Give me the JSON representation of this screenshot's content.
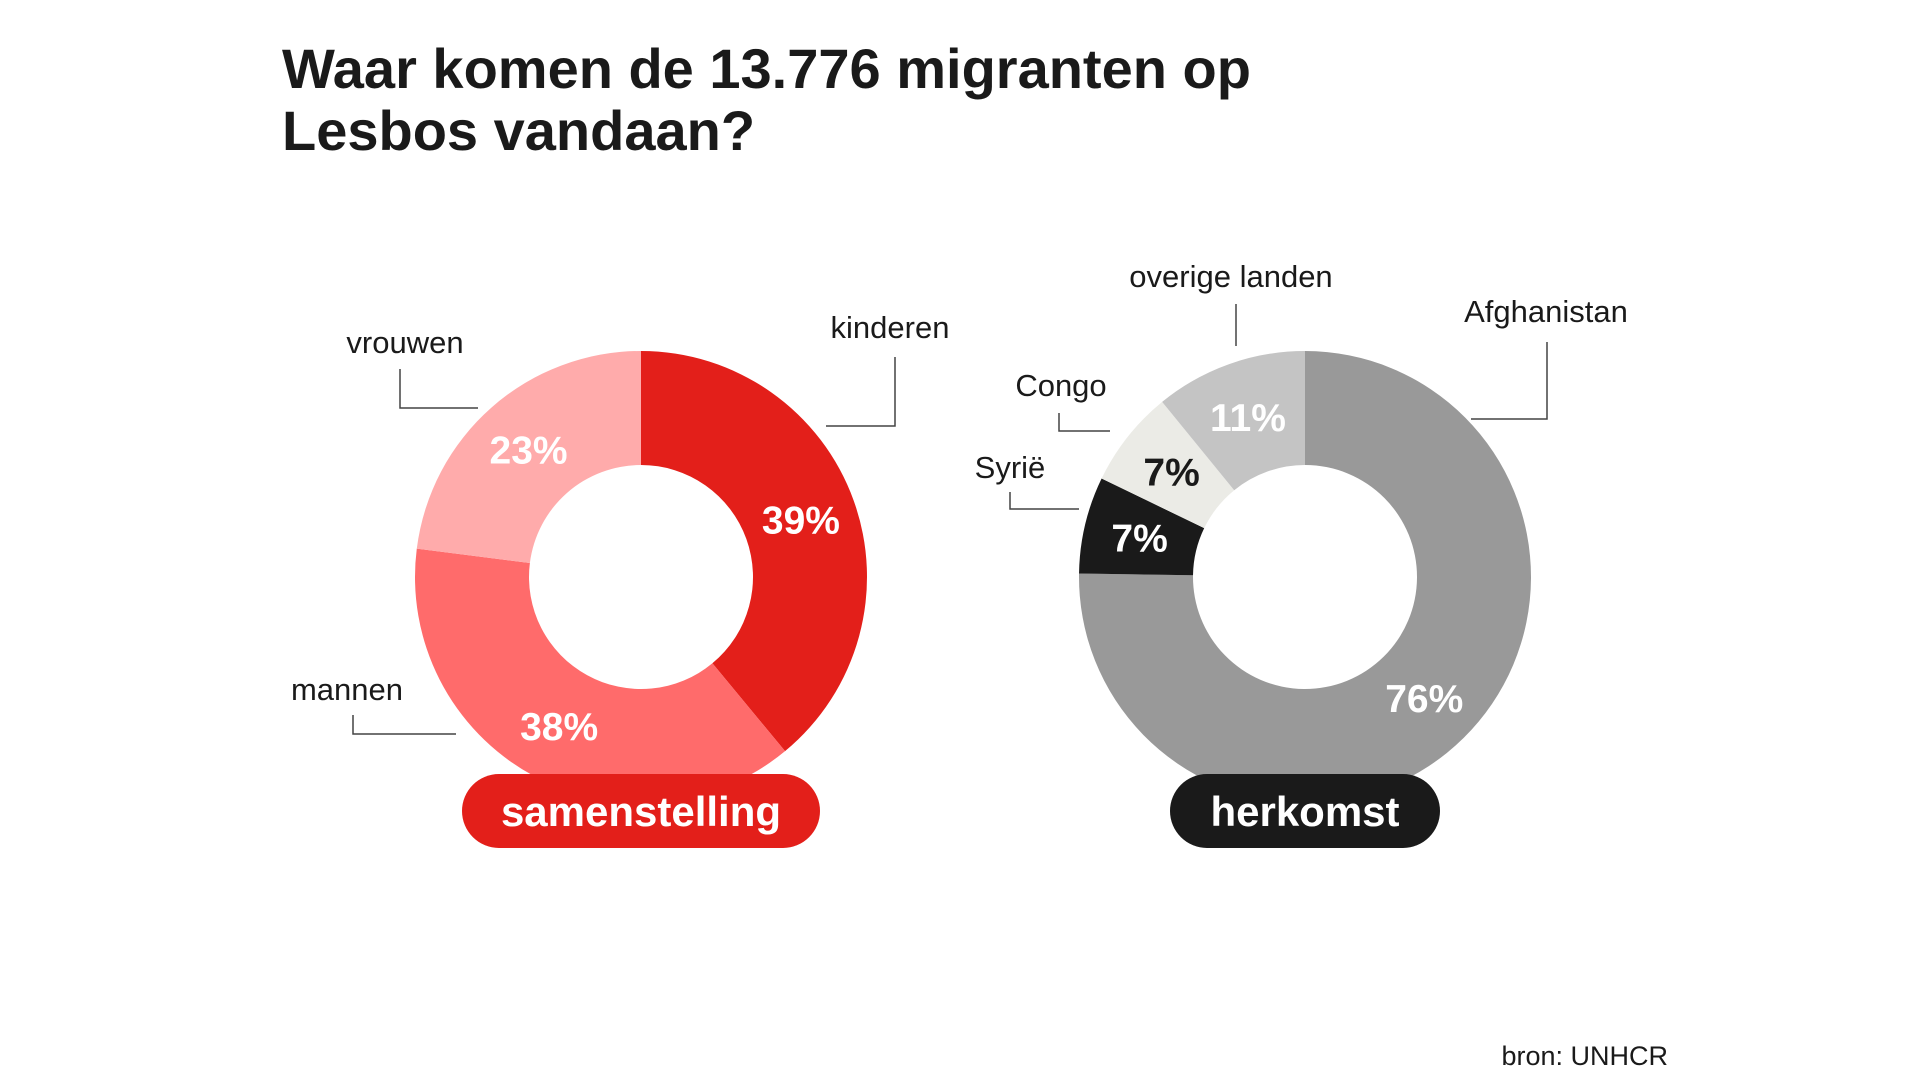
{
  "title": {
    "line1": "Waar komen de 13.776 migranten op",
    "line2": "Lesbos vandaan?"
  },
  "chart_data": [
    {
      "type": "pie",
      "variant": "donut",
      "name": "samenstelling",
      "pill_color": "#e31f1a",
      "slices": [
        {
          "label": "kinderen",
          "value": 39,
          "display": "39%",
          "color": "#e31f1a",
          "text_color": "#ffffff"
        },
        {
          "label": "mannen",
          "value": 38,
          "display": "38%",
          "color": "#ff6b6b",
          "text_color": "#ffffff"
        },
        {
          "label": "vrouwen",
          "value": 23,
          "display": "23%",
          "color": "#ffabab",
          "text_color": "#ffffff"
        }
      ]
    },
    {
      "type": "pie",
      "variant": "donut",
      "name": "herkomst",
      "pill_color": "#1a1a1a",
      "slices": [
        {
          "label": "Afghanistan",
          "value": 76,
          "display": "76%",
          "color": "#999999",
          "text_color": "#ffffff"
        },
        {
          "label": "Syrië",
          "value": 7,
          "display": "7%",
          "color": "#1a1a1a",
          "text_color": "#ffffff"
        },
        {
          "label": "Congo",
          "value": 7,
          "display": "7%",
          "color": "#ebebe6",
          "text_color": "#1a1a1a"
        },
        {
          "label": "overige landen",
          "value": 11,
          "display": "11%",
          "color": "#c4c4c4",
          "text_color": "#ffffff"
        }
      ]
    }
  ],
  "source": "bron: UNHCR"
}
